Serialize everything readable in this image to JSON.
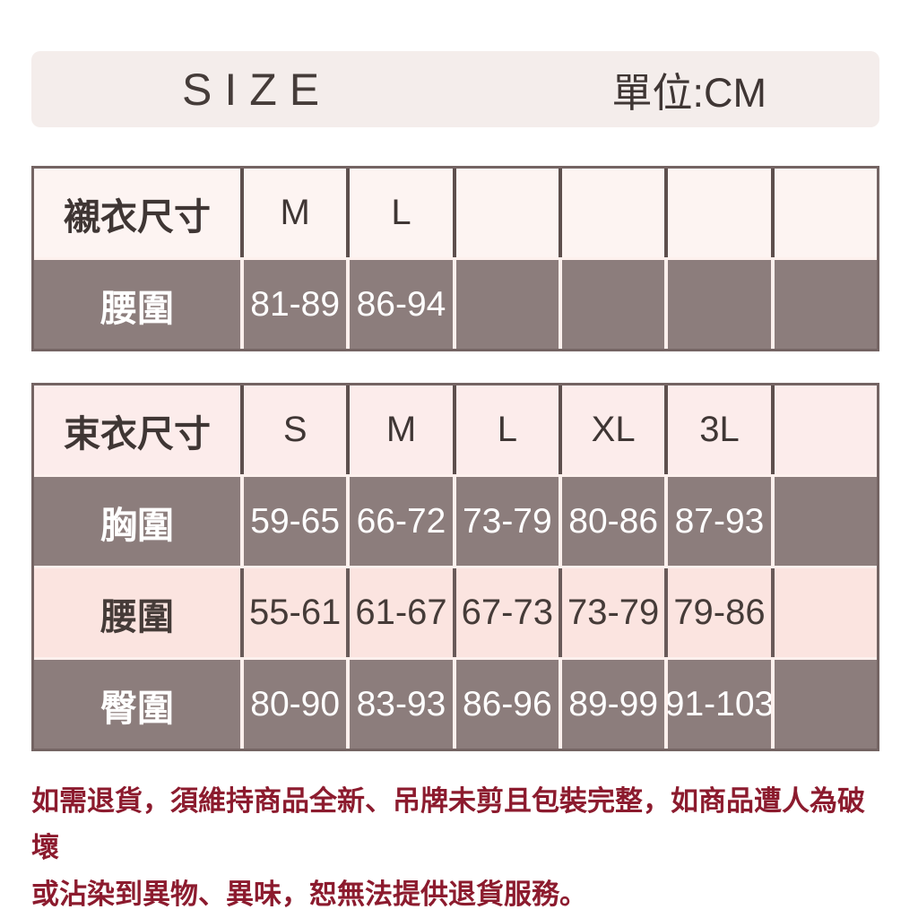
{
  "header": {
    "title": "SIZE",
    "unit_label": "單位:CM"
  },
  "tables": [
    {
      "name": "shirt-size-table",
      "header": {
        "label": "襯衣尺寸",
        "sizes": [
          "M",
          "L",
          "",
          "",
          "",
          ""
        ]
      },
      "rows": [
        {
          "label": "腰圍",
          "values": [
            "81-89",
            "86-94",
            "",
            "",
            "",
            ""
          ]
        }
      ]
    },
    {
      "name": "shaper-size-table",
      "header": {
        "label": "束衣尺寸",
        "sizes": [
          "S",
          "M",
          "L",
          "XL",
          "3L",
          ""
        ]
      },
      "rows": [
        {
          "label": "胸圍",
          "values": [
            "59-65",
            "66-72",
            "73-79",
            "80-86",
            "87-93",
            ""
          ]
        },
        {
          "label": "腰圍",
          "values": [
            "55-61",
            "61-67",
            "67-73",
            "73-79",
            "79-86",
            ""
          ]
        },
        {
          "label": "臀圍",
          "values": [
            "80-90",
            "83-93",
            "86-96",
            "89-99",
            "91-103",
            ""
          ]
        }
      ]
    }
  ],
  "footer": {
    "line1": "如需退貨，須維持商品全新、吊牌未剪且包裝完整，如商品遭人為破壞",
    "line2": "或沾染到異物、異味，恕無法提供退貨服務。"
  },
  "colors": {
    "page_background": "#ffffff",
    "header_bar_background": "#f4edeb",
    "table_border": "#746463",
    "dark_row_background": "#8c7d7c",
    "light_header_row_background": "#fdf4f2",
    "pink_header_row_background": "#fceceb",
    "pink_row_background": "#fbe4e0",
    "dark_text": "#3f3634",
    "white_text": "#ffffff",
    "footer_text": "#8c1b2e"
  }
}
